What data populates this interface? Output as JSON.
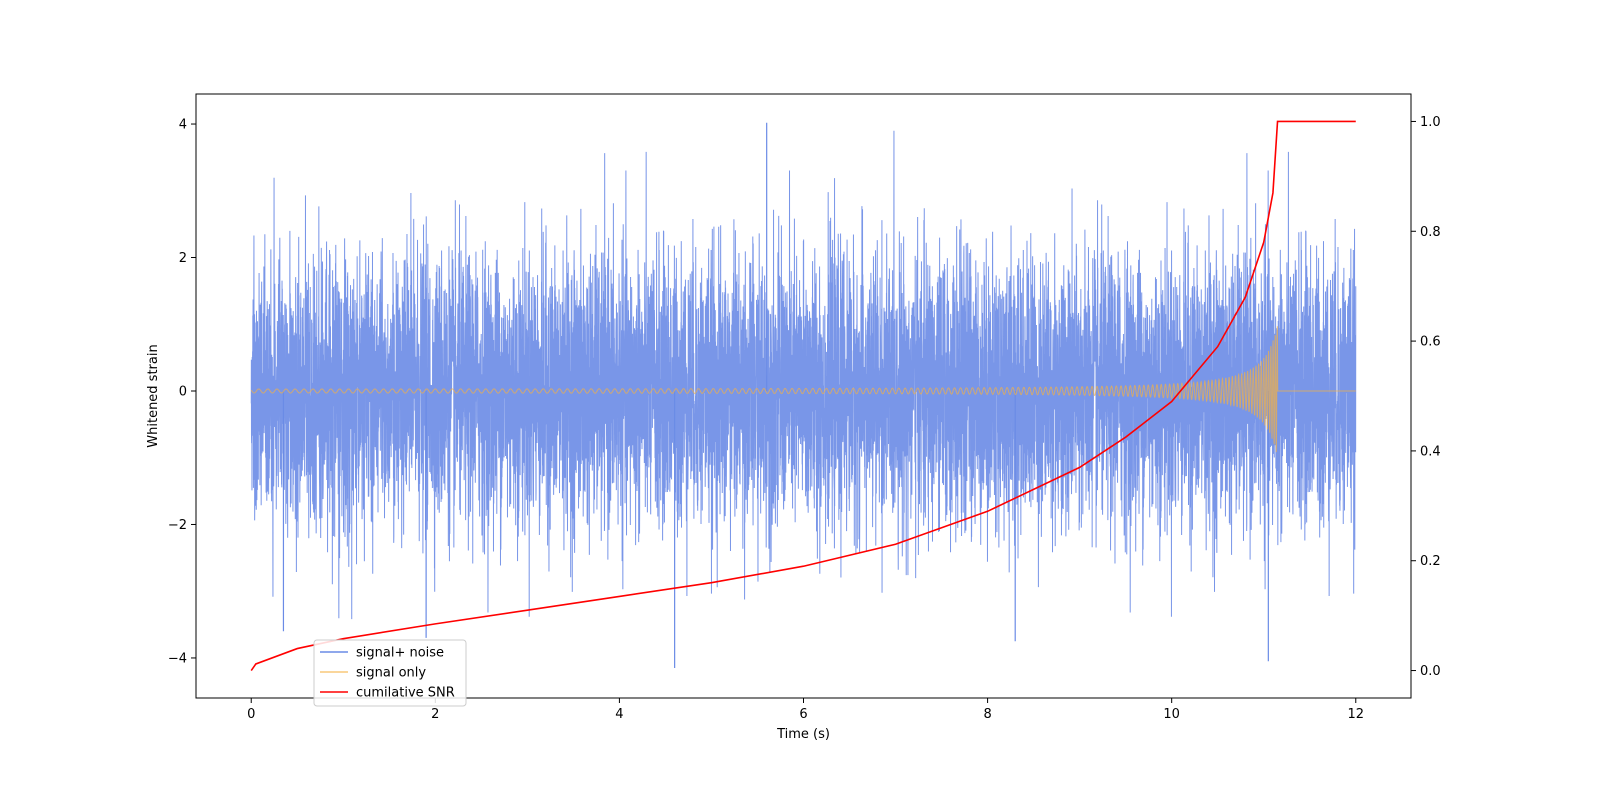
{
  "chart_data": {
    "type": "line",
    "title": "",
    "xlabel": "Time (s)",
    "ylabel": "Whitened strain",
    "y2label": "",
    "xlim": [
      -0.6,
      12.6
    ],
    "ylim": [
      -4.6,
      4.45
    ],
    "y2lim": [
      -0.05,
      1.05
    ],
    "x_ticks": [
      0,
      2,
      4,
      6,
      8,
      10,
      12
    ],
    "y_ticks": [
      -4,
      -2,
      0,
      2,
      4
    ],
    "y2_ticks": [
      0.0,
      0.2,
      0.4,
      0.6,
      0.8,
      1.0
    ],
    "x_tick_labels": [
      "0",
      "2",
      "4",
      "6",
      "8",
      "10",
      "12"
    ],
    "y_tick_labels": [
      "−4",
      "−2",
      "0",
      "2",
      "4"
    ],
    "y2_tick_labels": [
      "0.0",
      "0.2",
      "0.4",
      "0.6",
      "0.8",
      "1.0"
    ],
    "grid": false,
    "legend_position": "lower-left",
    "series": [
      {
        "name": "signal+ noise",
        "axis": "left",
        "color": "#6a8be6",
        "description_of_shape": "noise-dominated trace spanning roughly -4 to 4 over t = 0 to 12",
        "t_start": 0,
        "t_end": 12,
        "approx_std": 1.0,
        "notable_peaks": [
          {
            "x": 5.6,
            "y": 4.02
          },
          {
            "x": 4.6,
            "y": -4.15
          },
          {
            "x": 11.05,
            "y": -4.05
          },
          {
            "x": 0.35,
            "y": -3.6
          },
          {
            "x": 1.9,
            "y": -3.7
          },
          {
            "x": 8.3,
            "y": -3.75
          }
        ]
      },
      {
        "name": "signal only",
        "axis": "left",
        "color": "#f5b041",
        "description_of_shape": "chirp with growing amplitude peaking near t = 11.15 then zero",
        "t_start": 0,
        "t_merge": 11.15,
        "t_end": 12,
        "amplitude_at_start": 0.03,
        "amplitude_at_merge": 1.0
      },
      {
        "name": "cumilative SNR",
        "axis": "right",
        "color": "#ff0000",
        "x": [
          0,
          0.05,
          0.5,
          1,
          2,
          3,
          4,
          5,
          6,
          7,
          8,
          9,
          9.5,
          10,
          10.5,
          10.8,
          11.0,
          11.1,
          11.15,
          12
        ],
        "values": [
          0.0,
          0.012,
          0.04,
          0.058,
          0.085,
          0.11,
          0.135,
          0.16,
          0.19,
          0.23,
          0.29,
          0.37,
          0.425,
          0.49,
          0.59,
          0.68,
          0.78,
          0.87,
          1.0,
          1.0
        ]
      }
    ]
  }
}
